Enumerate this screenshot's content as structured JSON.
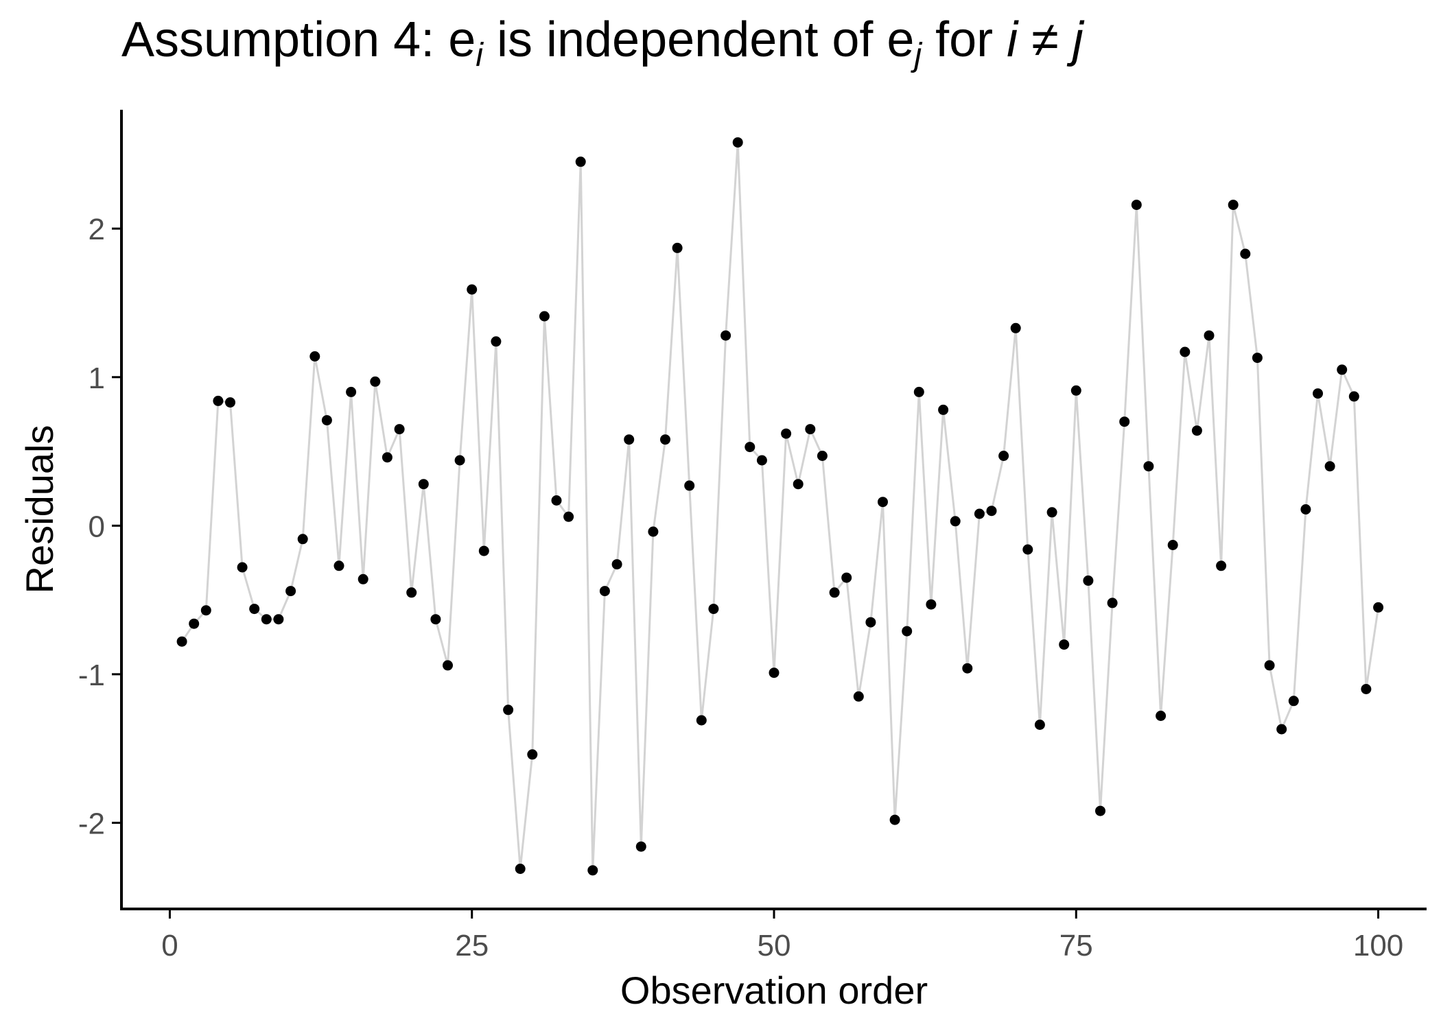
{
  "chart_data": {
    "type": "line",
    "title": {
      "p1": "Assumption 4: e",
      "s1": "i",
      "p2": " is independent of e",
      "s2": "j",
      "p3": " for ",
      "v1": "i",
      "neq": " ≠ ",
      "v2": "j"
    },
    "xlabel": "Observation order",
    "ylabel": "Residuals",
    "xlim": [
      -4,
      104
    ],
    "ylim": [
      -2.58,
      2.8
    ],
    "x_ticks": [
      0,
      25,
      50,
      75,
      100
    ],
    "x_tick_labels": [
      "0",
      "25",
      "50",
      "75",
      "100"
    ],
    "y_ticks": [
      2,
      1,
      0,
      -1,
      -2
    ],
    "y_tick_labels": [
      "2",
      "1",
      "0",
      "-1",
      "-2"
    ],
    "grid": false,
    "colors": {
      "line": "#d3d3d3",
      "point": "#000000",
      "axis": "#000000",
      "tick_label": "#4d4d4d"
    },
    "series": [
      {
        "x": [
          1,
          2,
          3,
          4,
          5,
          6,
          7,
          8,
          9,
          10,
          11,
          12,
          13,
          14,
          15,
          16,
          17,
          18,
          19,
          20,
          21,
          22,
          23,
          24,
          25,
          26,
          27,
          28,
          29,
          30,
          31,
          32,
          33,
          34,
          35,
          36,
          37,
          38,
          39,
          40,
          41,
          42,
          43,
          44,
          45,
          46,
          47,
          48,
          49,
          50,
          51,
          52,
          53,
          54,
          55,
          56,
          57,
          58,
          59,
          60,
          61,
          62,
          63,
          64,
          65,
          66,
          67,
          68,
          69,
          70,
          71,
          72,
          73,
          74,
          75,
          76,
          77,
          78,
          79,
          80,
          81,
          82,
          83,
          84,
          85,
          86,
          87,
          88,
          89,
          90,
          91,
          92,
          93,
          94,
          95,
          96,
          97,
          98,
          99,
          100
        ],
        "y": [
          -0.78,
          -0.66,
          -0.57,
          0.84,
          0.83,
          -0.28,
          -0.56,
          -0.63,
          -0.63,
          -0.44,
          -0.09,
          1.14,
          0.71,
          -0.27,
          0.9,
          -0.36,
          0.97,
          0.46,
          0.65,
          -0.45,
          0.28,
          -0.63,
          -0.94,
          0.44,
          1.59,
          -0.17,
          1.24,
          -1.24,
          -2.31,
          -1.54,
          1.41,
          0.17,
          0.06,
          2.45,
          -2.32,
          -0.44,
          -0.26,
          0.58,
          -2.16,
          -0.04,
          0.58,
          1.87,
          0.27,
          -1.31,
          -0.56,
          1.28,
          2.58,
          0.53,
          0.44,
          -0.99,
          0.62,
          0.28,
          0.65,
          0.47,
          -0.45,
          -0.35,
          -1.15,
          -0.65,
          0.16,
          -1.98,
          -0.71,
          0.9,
          -0.53,
          0.78,
          0.03,
          -0.96,
          0.08,
          0.1,
          0.47,
          1.33,
          -0.16,
          -1.34,
          0.09,
          -0.8,
          0.91,
          -0.37,
          -1.92,
          -0.52,
          0.7,
          2.16,
          0.4,
          -1.28,
          -0.13,
          1.17,
          0.64,
          1.28,
          -0.27,
          2.16,
          1.83,
          1.13,
          -0.94,
          -1.37,
          -1.18,
          0.11,
          0.89,
          0.4,
          1.05,
          0.87,
          -1.1,
          -0.55
        ]
      }
    ]
  }
}
